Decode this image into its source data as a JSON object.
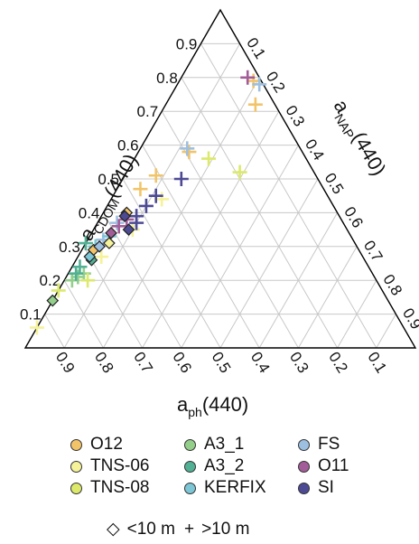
{
  "chart_data": {
    "type": "ternary",
    "axes": {
      "top": {
        "label_main": "a",
        "label_sub": "CDOM",
        "label_tail": "(440)",
        "ticks": [
          "0.1",
          "0.2",
          "0.3",
          "0.4",
          "0.5",
          "0.6",
          "0.7",
          "0.8",
          "0.9"
        ]
      },
      "right": {
        "label_main": "a",
        "label_sub": "NAP",
        "label_tail": "(440)",
        "ticks": [
          "0.1",
          "0.2",
          "0.3",
          "0.4",
          "0.5",
          "0.6",
          "0.7",
          "0.8",
          "0.9"
        ]
      },
      "left": {
        "label_main": "a",
        "label_sub": "ph",
        "label_tail": "(440)",
        "ticks": [
          "0.9",
          "0.8",
          "0.7",
          "0.6",
          "0.5",
          "0.4",
          "0.3",
          "0.2",
          "0.1"
        ]
      }
    },
    "grid": true,
    "legend": {
      "colors": [
        {
          "name": "O12",
          "color": "#f2c46a"
        },
        {
          "name": "A3_1",
          "color": "#93cf8b"
        },
        {
          "name": "FS",
          "color": "#9dbfe0"
        },
        {
          "name": "TNS-06",
          "color": "#f5f29a"
        },
        {
          "name": "A3_2",
          "color": "#52b094"
        },
        {
          "name": "O11",
          "color": "#a25d98"
        },
        {
          "name": "TNS-08",
          "color": "#dce96b"
        },
        {
          "name": "KERFIX",
          "color": "#7cc6d6"
        },
        {
          "name": "SI",
          "color": "#4d4a94"
        }
      ],
      "shapes": [
        {
          "symbol": "◇",
          "label": "<10 m"
        },
        {
          "symbol": "+",
          "label": ">10 m"
        }
      ]
    },
    "series": [
      {
        "name": "O12",
        "color": "#f2c46a",
        "points": [
          {
            "cdom": 0.79,
            "nap": 0.19,
            "shape": "plus"
          },
          {
            "cdom": 0.72,
            "nap": 0.23,
            "shape": "plus"
          },
          {
            "cdom": 0.58,
            "nap": 0.13,
            "shape": "plus"
          },
          {
            "cdom": 0.51,
            "nap": 0.08,
            "shape": "plus"
          },
          {
            "cdom": 0.47,
            "nap": 0.06,
            "shape": "plus"
          },
          {
            "cdom": 0.4,
            "nap": 0.06,
            "shape": "diamond"
          },
          {
            "cdom": 0.29,
            "nap": 0.03,
            "shape": "diamond"
          }
        ]
      },
      {
        "name": "A3_1",
        "color": "#93cf8b",
        "points": [
          {
            "cdom": 0.21,
            "nap": 0.03,
            "shape": "plus"
          },
          {
            "cdom": 0.2,
            "nap": 0.02,
            "shape": "plus"
          },
          {
            "cdom": 0.22,
            "nap": 0.04,
            "shape": "plus"
          },
          {
            "cdom": 0.14,
            "nap": 0.0,
            "shape": "diamond"
          }
        ]
      },
      {
        "name": "FS",
        "color": "#9dbfe0",
        "points": [
          {
            "cdom": 0.78,
            "nap": 0.21,
            "shape": "plus"
          },
          {
            "cdom": 0.59,
            "nap": 0.12,
            "shape": "plus"
          },
          {
            "cdom": 0.37,
            "nap": 0.05,
            "shape": "plus"
          },
          {
            "cdom": 0.32,
            "nap": 0.04,
            "shape": "plus"
          },
          {
            "cdom": 0.3,
            "nap": 0.04,
            "shape": "diamond"
          }
        ]
      },
      {
        "name": "TNS-06",
        "color": "#f5f29a",
        "points": [
          {
            "cdom": 0.06,
            "nap": 0.0,
            "shape": "plus"
          },
          {
            "cdom": 0.44,
            "nap": 0.13,
            "shape": "plus"
          },
          {
            "cdom": 0.35,
            "nap": 0.1,
            "shape": "plus"
          },
          {
            "cdom": 0.27,
            "nap": 0.06,
            "shape": "plus"
          },
          {
            "cdom": 0.31,
            "nap": 0.06,
            "shape": "diamond"
          }
        ]
      },
      {
        "name": "A3_2",
        "color": "#52b094",
        "points": [
          {
            "cdom": 0.31,
            "nap": 0.0,
            "shape": "plus"
          },
          {
            "cdom": 0.24,
            "nap": 0.02,
            "shape": "plus"
          },
          {
            "cdom": 0.26,
            "nap": 0.04,
            "shape": "diamond"
          },
          {
            "cdom": 0.22,
            "nap": 0.02,
            "shape": "plus"
          }
        ]
      },
      {
        "name": "O11",
        "color": "#a25d98",
        "points": [
          {
            "cdom": 0.8,
            "nap": 0.17,
            "shape": "plus"
          },
          {
            "cdom": 0.38,
            "nap": 0.07,
            "shape": "plus"
          },
          {
            "cdom": 0.36,
            "nap": 0.06,
            "shape": "plus"
          },
          {
            "cdom": 0.34,
            "nap": 0.05,
            "shape": "diamond"
          }
        ]
      },
      {
        "name": "TNS-08",
        "color": "#dce96b",
        "points": [
          {
            "cdom": 0.17,
            "nap": 0.0,
            "shape": "plus"
          },
          {
            "cdom": 0.56,
            "nap": 0.19,
            "shape": "plus"
          },
          {
            "cdom": 0.52,
            "nap": 0.29,
            "shape": "plus"
          },
          {
            "cdom": 0.2,
            "nap": 0.06,
            "shape": "plus"
          }
        ]
      },
      {
        "name": "KERFIX",
        "color": "#7cc6d6",
        "points": [
          {
            "cdom": 0.33,
            "nap": 0.05,
            "shape": "plus"
          },
          {
            "cdom": 0.3,
            "nap": 0.03,
            "shape": "plus"
          },
          {
            "cdom": 0.27,
            "nap": 0.03,
            "shape": "diamond"
          }
        ]
      },
      {
        "name": "SI",
        "color": "#4d4a94",
        "points": [
          {
            "cdom": 0.5,
            "nap": 0.15,
            "shape": "plus"
          },
          {
            "cdom": 0.45,
            "nap": 0.11,
            "shape": "plus"
          },
          {
            "cdom": 0.42,
            "nap": 0.1,
            "shape": "plus"
          },
          {
            "cdom": 0.39,
            "nap": 0.09,
            "shape": "plus"
          },
          {
            "cdom": 0.37,
            "nap": 0.1,
            "shape": "plus"
          },
          {
            "cdom": 0.39,
            "nap": 0.06,
            "shape": "diamond"
          },
          {
            "cdom": 0.35,
            "nap": 0.09,
            "shape": "diamond"
          }
        ]
      }
    ]
  }
}
